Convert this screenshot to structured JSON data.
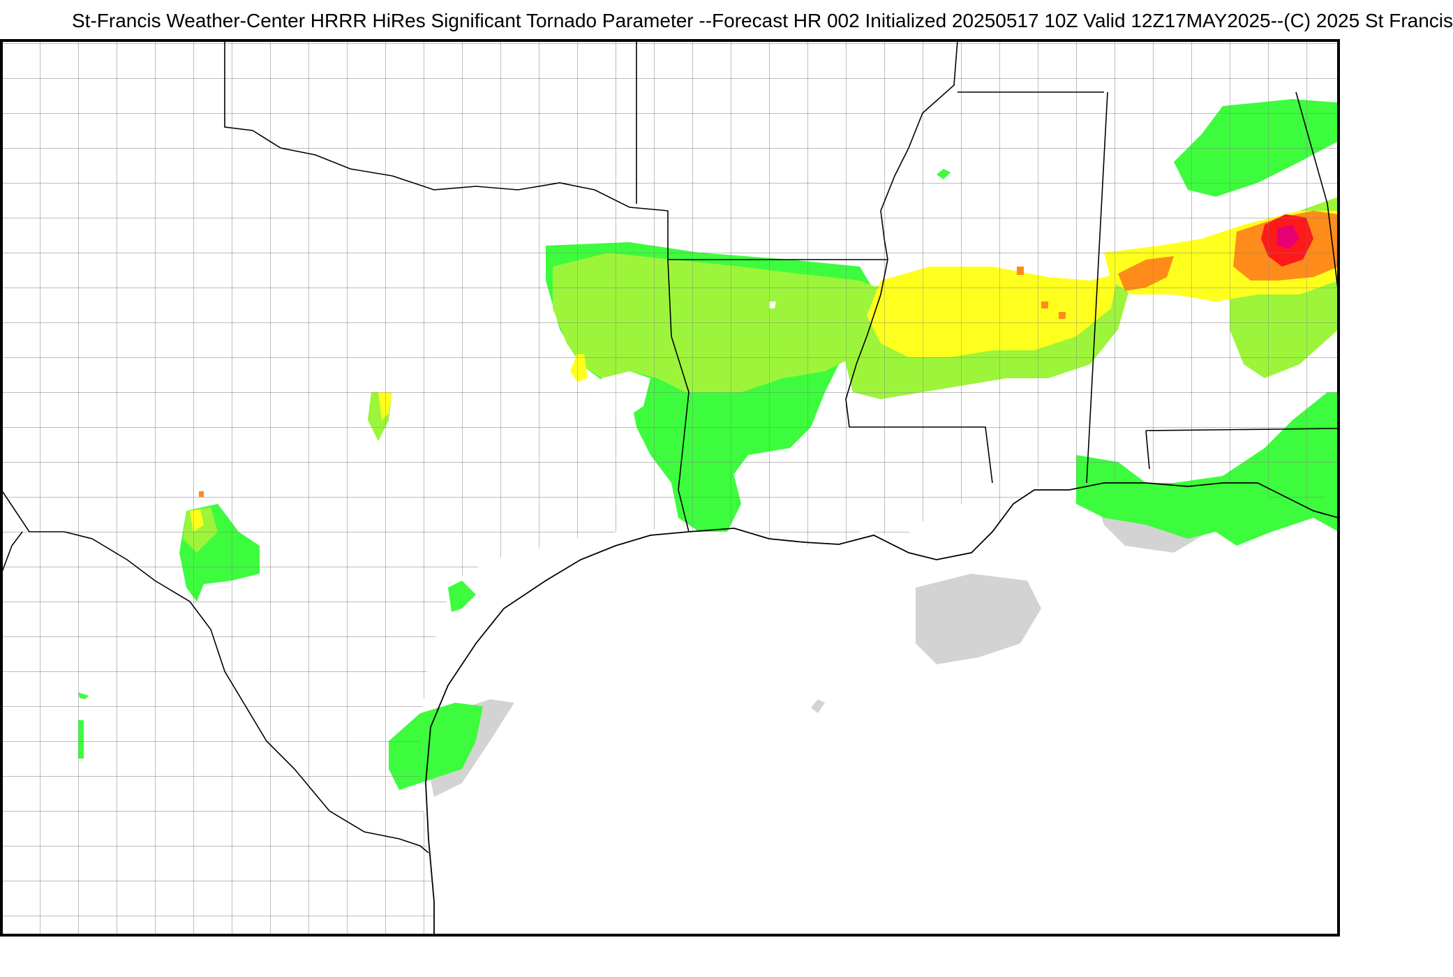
{
  "title": "St-Francis Weather-Center HRRR HiRes Significant Tornado Parameter --Forecast HR 002 Initialized 20250517 10Z Valid 12Z17MAY2025--(C) 2025 St Francis",
  "map": {
    "region": "South-Central United States and northern Gulf of Mexico",
    "background_color": "#ffffff",
    "boundary_color": "#000000",
    "county_line_color": "#7a7a7a",
    "shade_colors": {
      "gray": "#d3d3d3",
      "light_green": "#3dfc3d",
      "yellow_green": "#9cf53a",
      "yellow": "#ffff1e",
      "orange": "#ff8c1a",
      "red": "#ff1a1a",
      "magenta": "#e60073"
    }
  }
}
